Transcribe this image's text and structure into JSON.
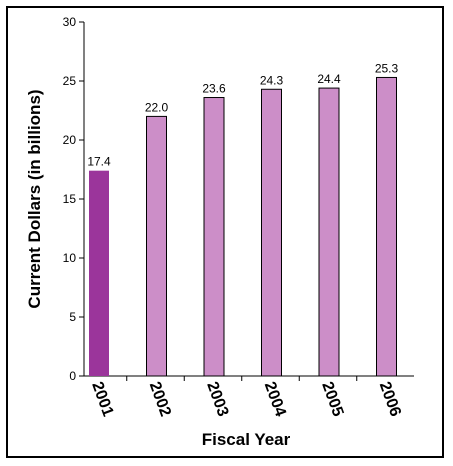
{
  "chart_data": {
    "type": "bar",
    "categories": [
      "2001",
      "2002",
      "2003",
      "2004",
      "2005",
      "2006"
    ],
    "values": [
      17.4,
      22.0,
      23.6,
      24.3,
      24.4,
      25.3
    ],
    "value_labels": [
      "17.4",
      "22.0",
      "23.6",
      "24.3",
      "24.4",
      "25.3"
    ],
    "title": "",
    "xlabel": "Fiscal Year",
    "ylabel": "Current Dollars (in billions)",
    "ylim": [
      0,
      30
    ],
    "yticks": [
      "0",
      "5",
      "10",
      "15",
      "20",
      "25",
      "30"
    ],
    "grid": false,
    "colors": {
      "highlight_bar": "#9b359b",
      "bar": "#cc8ec8",
      "outline": "#000000"
    }
  }
}
